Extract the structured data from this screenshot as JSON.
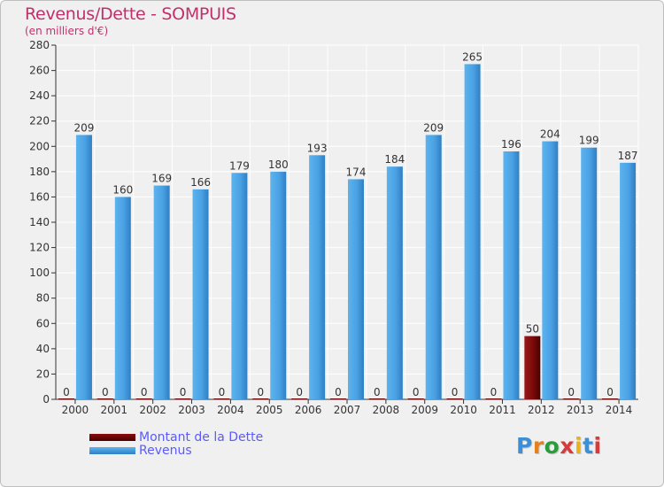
{
  "title": "Revenus/Dette - SOMPUIS",
  "subtitle": "(en milliers d'€)",
  "legend": [
    {
      "label": "Montant de la Dette",
      "color": "#6b0000"
    },
    {
      "label": "Revenus",
      "color": "#4da6e8"
    }
  ],
  "logo_text": "Proxiti",
  "chart_data": {
    "type": "bar",
    "categories": [
      "2000",
      "2001",
      "2002",
      "2003",
      "2004",
      "2005",
      "2006",
      "2007",
      "2008",
      "2009",
      "2010",
      "2011",
      "2012",
      "2013",
      "2014"
    ],
    "series": [
      {
        "name": "Montant de la Dette",
        "color": "#6b0000",
        "values": [
          0,
          0,
          0,
          0,
          0,
          0,
          0,
          0,
          0,
          0,
          0,
          0,
          50,
          0,
          0
        ]
      },
      {
        "name": "Revenus",
        "color": "#4da6e8",
        "values": [
          209,
          160,
          169,
          166,
          179,
          180,
          193,
          174,
          184,
          209,
          265,
          196,
          204,
          199,
          187
        ]
      }
    ],
    "ylim": [
      0,
      280
    ],
    "yticks": [
      0,
      20,
      40,
      60,
      80,
      100,
      120,
      140,
      160,
      180,
      200,
      220,
      240,
      260,
      280
    ],
    "grid": true,
    "legend_position": "bottom-left"
  }
}
